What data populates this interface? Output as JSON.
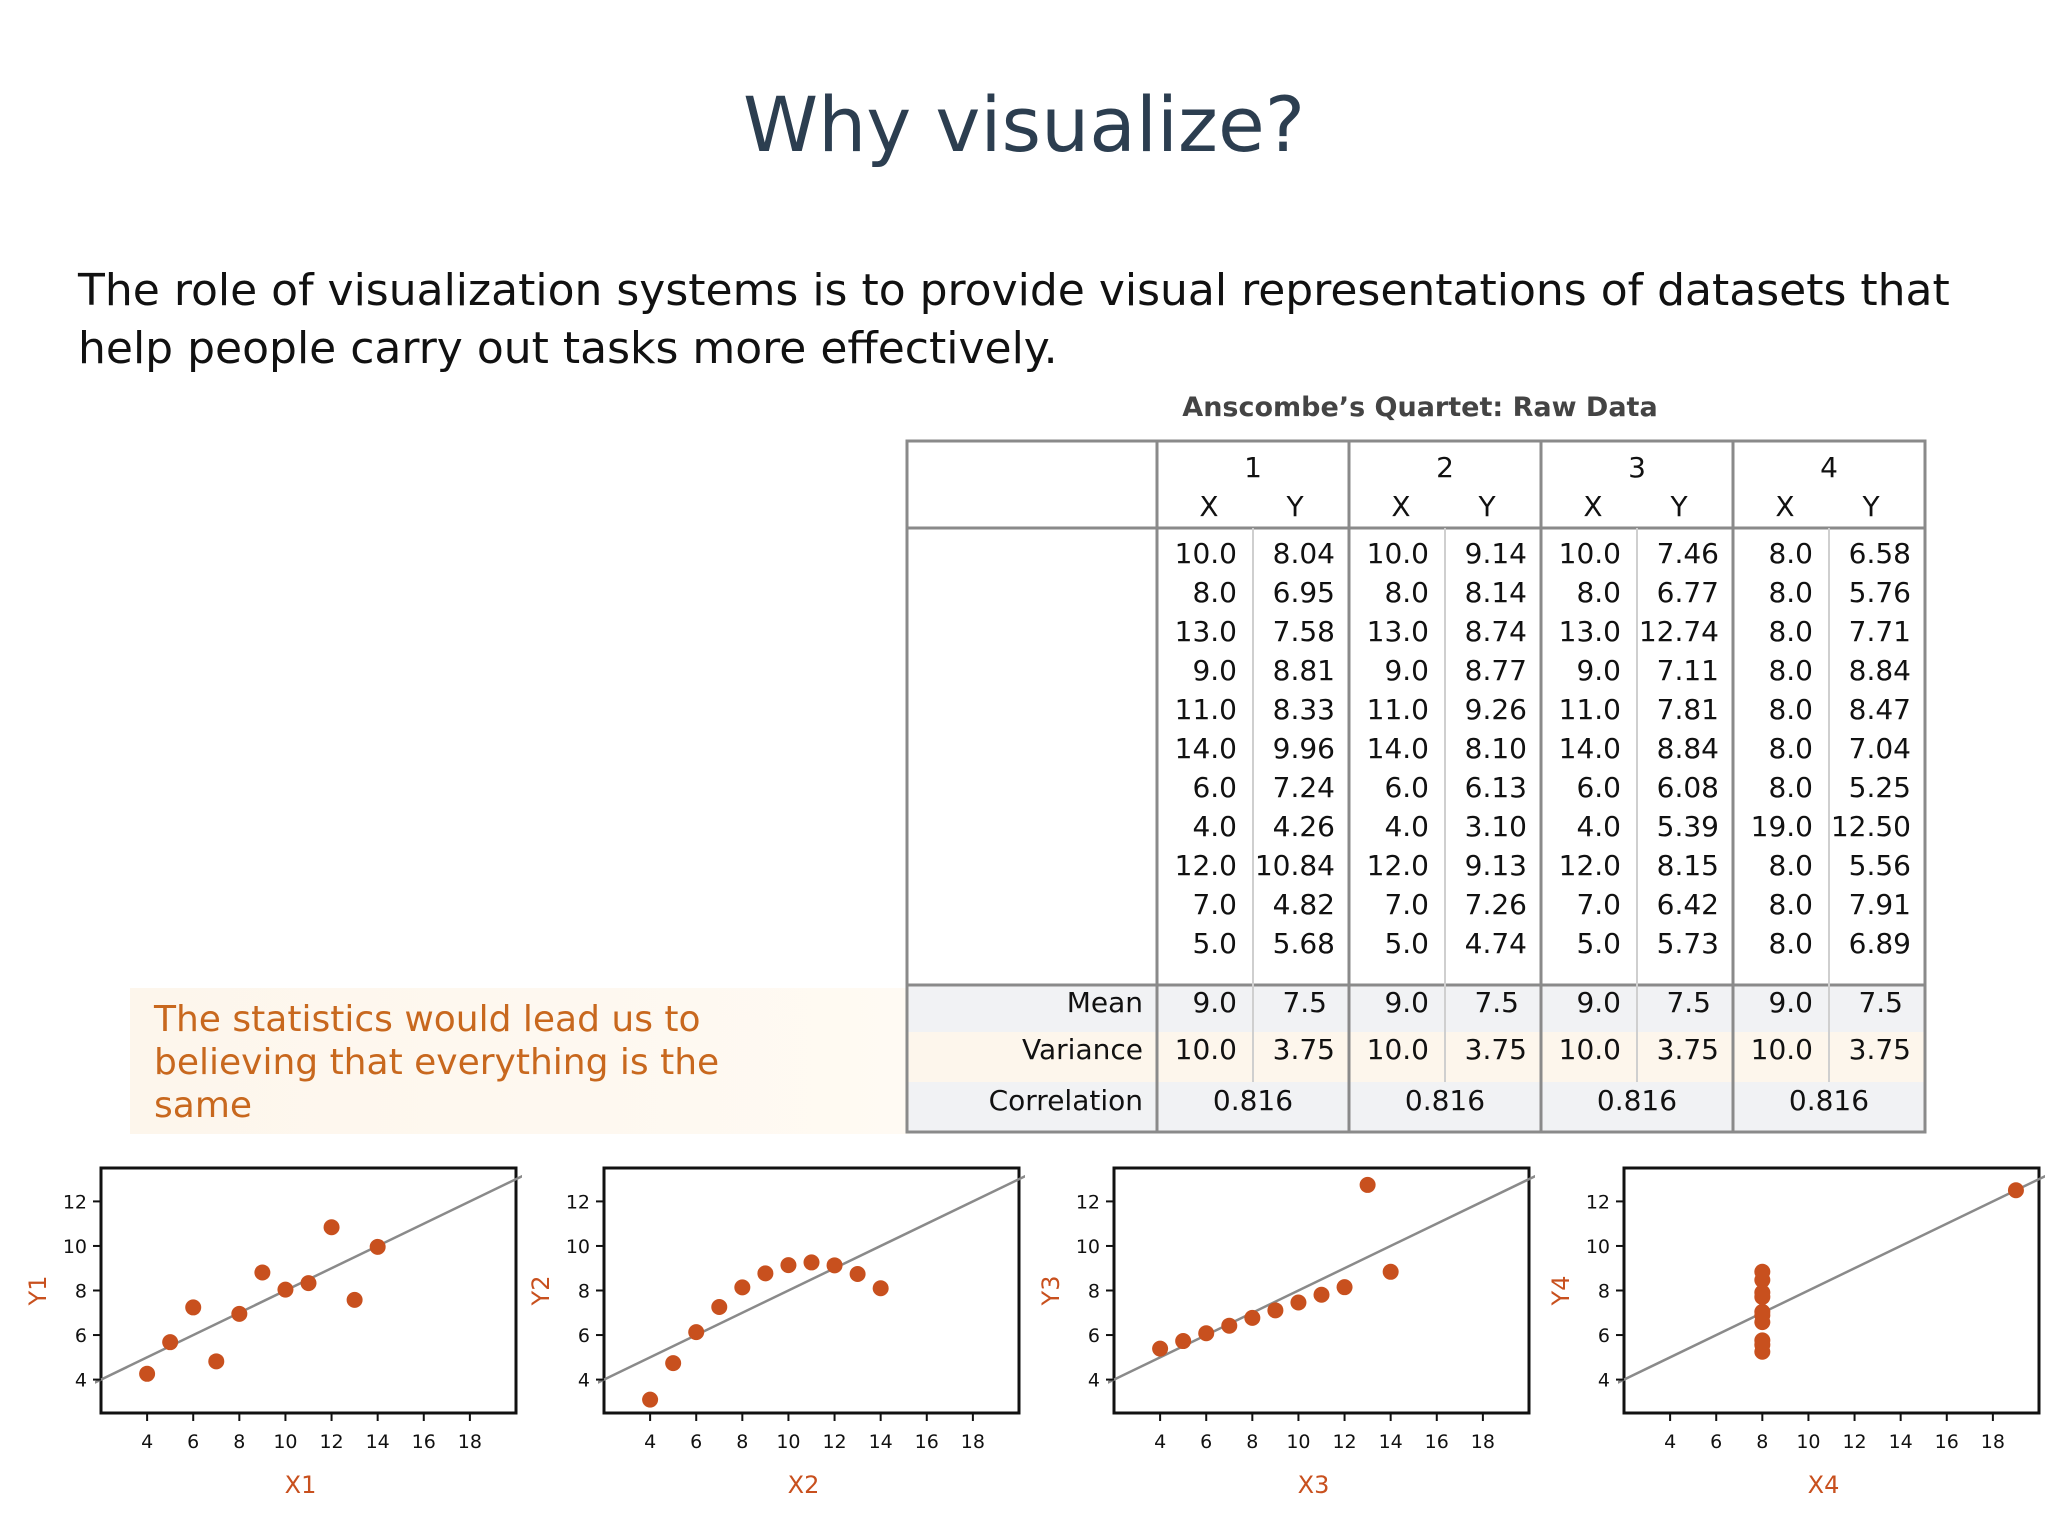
{
  "slide": {
    "title": "Why visualize?",
    "lead": "The role of visualization systems is to provide visual representations of datasets that help people carry out tasks more effectively.",
    "callout": "The statistics would lead us to believing that everything is the same"
  },
  "table": {
    "caption": "Anscombe’s Quartet: Raw Data",
    "groups": [
      "1",
      "2",
      "3",
      "4"
    ],
    "subheaders": [
      "X",
      "Y"
    ],
    "rows": [
      [
        "10.0",
        "8.04",
        "10.0",
        "9.14",
        "10.0",
        "7.46",
        "8.0",
        "6.58"
      ],
      [
        "8.0",
        "6.95",
        "8.0",
        "8.14",
        "8.0",
        "6.77",
        "8.0",
        "5.76"
      ],
      [
        "13.0",
        "7.58",
        "13.0",
        "8.74",
        "13.0",
        "12.74",
        "8.0",
        "7.71"
      ],
      [
        "9.0",
        "8.81",
        "9.0",
        "8.77",
        "9.0",
        "7.11",
        "8.0",
        "8.84"
      ],
      [
        "11.0",
        "8.33",
        "11.0",
        "9.26",
        "11.0",
        "7.81",
        "8.0",
        "8.47"
      ],
      [
        "14.0",
        "9.96",
        "14.0",
        "8.10",
        "14.0",
        "8.84",
        "8.0",
        "7.04"
      ],
      [
        "6.0",
        "7.24",
        "6.0",
        "6.13",
        "6.0",
        "6.08",
        "8.0",
        "5.25"
      ],
      [
        "4.0",
        "4.26",
        "4.0",
        "3.10",
        "4.0",
        "5.39",
        "19.0",
        "12.50"
      ],
      [
        "12.0",
        "10.84",
        "12.0",
        "9.13",
        "12.0",
        "8.15",
        "8.0",
        "5.56"
      ],
      [
        "7.0",
        "4.82",
        "7.0",
        "7.26",
        "7.0",
        "6.42",
        "8.0",
        "7.91"
      ],
      [
        "5.0",
        "5.68",
        "5.0",
        "4.74",
        "5.0",
        "5.73",
        "8.0",
        "6.89"
      ]
    ],
    "stats": {
      "mean_label": "Mean",
      "variance_label": "Variance",
      "correlation_label": "Correlation",
      "mean": [
        [
          "9.0",
          "7.5"
        ],
        [
          "9.0",
          "7.5"
        ],
        [
          "9.0",
          "7.5"
        ],
        [
          "9.0",
          "7.5"
        ]
      ],
      "variance": [
        [
          "10.0",
          "3.75"
        ],
        [
          "10.0",
          "3.75"
        ],
        [
          "10.0",
          "3.75"
        ],
        [
          "10.0",
          "3.75"
        ]
      ],
      "correlation": [
        "0.816",
        "0.816",
        "0.816",
        "0.816"
      ]
    }
  },
  "colors": {
    "title": "#2c3e50",
    "accent": "#c8501e",
    "callout_text": "#c8681e",
    "table_border": "#8a8a8a",
    "stat_row_gray": "#f1f2f4",
    "stat_row_cream": "#fdf6ec"
  },
  "chart_data": [
    {
      "type": "scatter",
      "xlabel": "X1",
      "ylabel": "Y1",
      "x": [
        10,
        8,
        13,
        9,
        11,
        14,
        6,
        4,
        12,
        7,
        5
      ],
      "y": [
        8.04,
        6.95,
        7.58,
        8.81,
        8.33,
        9.96,
        7.24,
        4.26,
        10.84,
        4.82,
        5.68
      ],
      "xticks": [
        4,
        6,
        8,
        10,
        12,
        14,
        16,
        18
      ],
      "yticks": [
        4,
        6,
        8,
        10,
        12
      ],
      "xlim": [
        2,
        20
      ],
      "ylim": [
        2.5,
        13.5
      ],
      "fit_line": {
        "slope": 0.5,
        "intercept": 3.0
      }
    },
    {
      "type": "scatter",
      "xlabel": "X2",
      "ylabel": "Y2",
      "x": [
        10,
        8,
        13,
        9,
        11,
        14,
        6,
        4,
        12,
        7,
        5
      ],
      "y": [
        9.14,
        8.14,
        8.74,
        8.77,
        9.26,
        8.1,
        6.13,
        3.1,
        9.13,
        7.26,
        4.74
      ],
      "xticks": [
        4,
        6,
        8,
        10,
        12,
        14,
        16,
        18
      ],
      "yticks": [
        4,
        6,
        8,
        10,
        12
      ],
      "xlim": [
        2,
        20
      ],
      "ylim": [
        2.5,
        13.5
      ],
      "fit_line": {
        "slope": 0.5,
        "intercept": 3.0
      }
    },
    {
      "type": "scatter",
      "xlabel": "X3",
      "ylabel": "Y3",
      "x": [
        10,
        8,
        13,
        9,
        11,
        14,
        6,
        4,
        12,
        7,
        5
      ],
      "y": [
        7.46,
        6.77,
        12.74,
        7.11,
        7.81,
        8.84,
        6.08,
        5.39,
        8.15,
        6.42,
        5.73
      ],
      "xticks": [
        4,
        6,
        8,
        10,
        12,
        14,
        16,
        18
      ],
      "yticks": [
        4,
        6,
        8,
        10,
        12
      ],
      "xlim": [
        2,
        20
      ],
      "ylim": [
        2.5,
        13.5
      ],
      "fit_line": {
        "slope": 0.5,
        "intercept": 3.0
      }
    },
    {
      "type": "scatter",
      "xlabel": "X4",
      "ylabel": "Y4",
      "x": [
        8,
        8,
        8,
        8,
        8,
        8,
        8,
        19,
        8,
        8,
        8
      ],
      "y": [
        6.58,
        5.76,
        7.71,
        8.84,
        8.47,
        7.04,
        5.25,
        12.5,
        5.56,
        7.91,
        6.89
      ],
      "xticks": [
        4,
        6,
        8,
        10,
        12,
        14,
        16,
        18
      ],
      "yticks": [
        4,
        6,
        8,
        10,
        12
      ],
      "xlim": [
        2,
        20
      ],
      "ylim": [
        2.5,
        13.5
      ],
      "fit_line": {
        "slope": 0.5,
        "intercept": 3.0
      }
    }
  ]
}
